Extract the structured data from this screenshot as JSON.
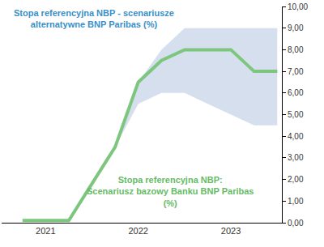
{
  "chart_data": {
    "type": "line",
    "categories": [
      null,
      "2021",
      null,
      null,
      null,
      "2022",
      null,
      null,
      null,
      "2023",
      null,
      null
    ],
    "series": [
      {
        "name": "Stopa referencyjna NBP - scenariusze alternatywne BNP Paribas (%)",
        "type": "area",
        "color": "#d5dfee",
        "lower": [
          null,
          null,
          null,
          null,
          3.5,
          5.5,
          6.0,
          6.0,
          5.5,
          5.0,
          4.5,
          4.5
        ],
        "values": [
          null,
          null,
          null,
          null,
          3.5,
          6.5,
          8.0,
          9.0,
          9.0,
          9.0,
          9.0,
          9.0
        ]
      },
      {
        "name": "Stopa referencyjna NBP: Scenariusz bazowy Banku BNP Paribas (%)",
        "type": "line",
        "color": "#7dc67e",
        "values": [
          0.1,
          0.1,
          0.1,
          1.8,
          3.5,
          6.5,
          7.5,
          8.0,
          8.0,
          8.0,
          7.0,
          7.0
        ]
      }
    ],
    "ylim": [
      0,
      10
    ],
    "yticks": [
      {
        "value": 0,
        "label": "0,00"
      },
      {
        "value": 1,
        "label": "1,00"
      },
      {
        "value": 2,
        "label": "2,00"
      },
      {
        "value": 3,
        "label": "3,00"
      },
      {
        "value": 4,
        "label": "4,00"
      },
      {
        "value": 5,
        "label": "5,00"
      },
      {
        "value": 6,
        "label": "6,00"
      },
      {
        "value": 7,
        "label": "7,00"
      },
      {
        "value": 8,
        "label": "8,00"
      },
      {
        "value": 9,
        "label": "9,00"
      },
      {
        "value": 10,
        "label": "10,00"
      }
    ],
    "grid": false
  }
}
